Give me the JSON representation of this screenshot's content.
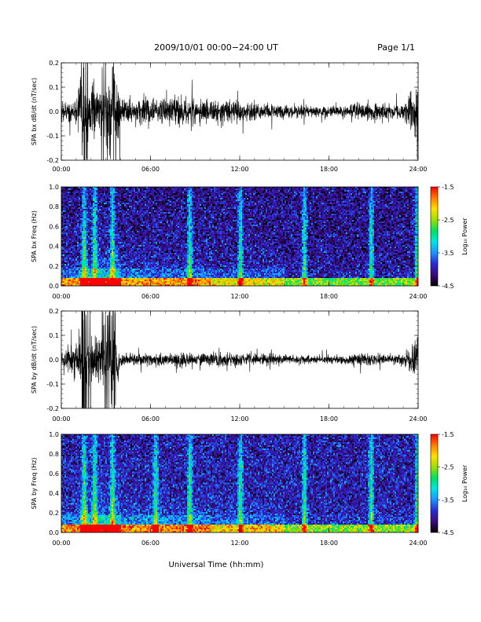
{
  "header": {
    "date_range": "2009/10/01  00:00−24:00 UT",
    "page": "Page 1/1"
  },
  "x_axis": {
    "title": "Universal Time (hh:mm)",
    "ticks": [
      "00:00",
      "06:00",
      "12:00",
      "18:00",
      "24:00"
    ]
  },
  "colorbar": {
    "title": "Log₁₀ Power",
    "ticks": [
      "-1.5",
      "-2.5",
      "-3.5",
      "-4.5"
    ],
    "range": [
      -4.5,
      -1.5
    ],
    "colors": [
      "#000000",
      "#3a0a7a",
      "#2a2ad4",
      "#1e90ff",
      "#00e5e5",
      "#00e060",
      "#9be000",
      "#ffe000",
      "#ff7a00",
      "#ff0000"
    ]
  },
  "chart_data": [
    {
      "type": "line",
      "ylabel": "SPA bx dB/dt (nT/sec)",
      "xlim": [
        0,
        24
      ],
      "ylim": [
        -0.2,
        0.2
      ],
      "yticks": [
        "0.2",
        "0.1",
        "0.0",
        "-0.1",
        "-0.2"
      ],
      "grid": false,
      "color": "#000000",
      "series": [
        {
          "x": [
            0,
            0.5,
            1,
            1.5,
            2,
            2.5,
            3,
            3.5,
            4,
            5,
            6,
            7,
            8,
            9,
            10,
            11,
            12,
            13,
            14,
            15,
            16,
            17,
            18,
            19,
            20,
            21,
            22,
            23,
            23.9
          ],
          "amplitude": [
            0.05,
            0.06,
            0.06,
            0.2,
            0.12,
            0.12,
            0.2,
            0.2,
            0.08,
            0.06,
            0.07,
            0.06,
            0.07,
            0.06,
            0.05,
            0.05,
            0.05,
            0.04,
            0.04,
            0.03,
            0.03,
            0.025,
            0.025,
            0.03,
            0.04,
            0.045,
            0.04,
            0.03,
            0.15
          ]
        }
      ]
    },
    {
      "type": "heatmap",
      "ylabel": "SPA bx Freq (Hz)",
      "xlim": [
        0,
        24
      ],
      "ylim": [
        0,
        1.0
      ],
      "yticks": [
        "1.0",
        "0.8",
        "0.6",
        "0.4",
        "0.2",
        "0.0"
      ],
      "colorbar": "Log₁₀ Power",
      "zlim": [
        -4.5,
        -1.5
      ],
      "background_log_power": -4.1,
      "bursts_hours": [
        1.5,
        2.2,
        3.4,
        8.6,
        12.0,
        16.3,
        20.8,
        23.9
      ]
    },
    {
      "type": "line",
      "ylabel": "SPA by dB/dt (nT/sec)",
      "xlim": [
        0,
        24
      ],
      "ylim": [
        -0.2,
        0.2
      ],
      "yticks": [
        "0.2",
        "0.1",
        "0.0",
        "-0.1",
        "-0.2"
      ],
      "grid": false,
      "color": "#000000",
      "series": [
        {
          "x": [
            0,
            0.5,
            1,
            1.5,
            2,
            2.5,
            3,
            3.5,
            4,
            5,
            6,
            7,
            8,
            9,
            10,
            11,
            12,
            13,
            14,
            15,
            16,
            17,
            18,
            19,
            20,
            21,
            22,
            23,
            23.9
          ],
          "amplitude": [
            0.04,
            0.06,
            0.08,
            0.2,
            0.15,
            0.13,
            0.2,
            0.2,
            0.03,
            0.03,
            0.03,
            0.03,
            0.04,
            0.04,
            0.035,
            0.04,
            0.04,
            0.03,
            0.03,
            0.025,
            0.02,
            0.02,
            0.02,
            0.02,
            0.035,
            0.03,
            0.025,
            0.025,
            0.09
          ]
        }
      ]
    },
    {
      "type": "heatmap",
      "ylabel": "SPA by Freq (Hz)",
      "xlim": [
        0,
        24
      ],
      "ylim": [
        0,
        1.0
      ],
      "yticks": [
        "1.0",
        "0.8",
        "0.6",
        "0.4",
        "0.2",
        "0.0"
      ],
      "colorbar": "Log₁₀ Power",
      "zlim": [
        -4.5,
        -1.5
      ],
      "background_log_power": -4.0,
      "bursts_hours": [
        1.5,
        2.2,
        3.4,
        6.3,
        8.6,
        12.0,
        16.3,
        20.8,
        23.9
      ]
    }
  ]
}
